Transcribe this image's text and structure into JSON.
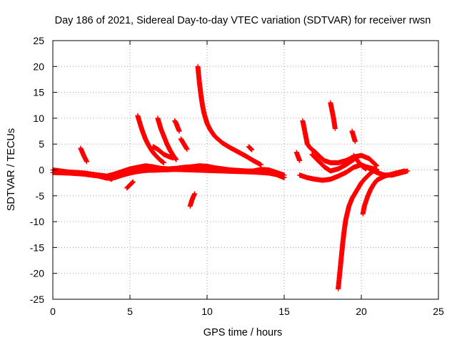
{
  "chart_data": {
    "type": "scatter",
    "title": "Day 186 of 2021, Sidereal Day-to-day VTEC variation (SDTVAR) for receiver rwsn",
    "xlabel": "GPS time / hours",
    "ylabel": "SDTVAR / TECUs",
    "xlim": [
      0,
      25
    ],
    "ylim": [
      -25,
      25
    ],
    "xticks": [
      0,
      5,
      10,
      15,
      20,
      25
    ],
    "yticks": [
      -25,
      -20,
      -15,
      -10,
      -5,
      0,
      5,
      10,
      15,
      20,
      25
    ],
    "xtick_labels": [
      "0",
      "5",
      "10",
      "15",
      "20",
      "25"
    ],
    "ytick_labels": [
      "-25",
      "-20",
      "-15",
      "-10",
      "-5",
      "0",
      "5",
      "10",
      "15",
      "20",
      "25"
    ],
    "grid": true,
    "marker": "+",
    "color": "#ff0000",
    "series": [
      {
        "name": "baseline-1",
        "x": [
          0,
          0.5,
          1,
          1.5,
          2,
          2.5,
          3,
          3.5,
          4,
          4.5,
          5,
          5.5,
          6,
          6.5,
          7,
          7.5,
          8,
          8.5,
          9,
          9.5,
          10,
          10.5,
          11,
          11.5,
          12,
          12.5,
          13,
          13.5,
          14,
          14.5,
          15
        ],
        "y": [
          0,
          -0.2,
          -0.4,
          -0.5,
          -0.6,
          -0.8,
          -1.0,
          -1.2,
          -0.8,
          -0.3,
          0.2,
          0.5,
          0.8,
          0.6,
          0.3,
          0.2,
          0.3,
          0.5,
          0.6,
          0.8,
          0.7,
          0.4,
          0.2,
          0,
          -0.1,
          -0.2,
          -0.2,
          0.1,
          0,
          -0.5,
          -1.0
        ]
      },
      {
        "name": "baseline-2",
        "x": [
          0,
          1,
          2,
          3,
          3.5,
          4,
          4.5,
          5,
          5.5,
          6,
          7,
          8,
          9,
          10,
          11,
          12,
          13,
          14,
          14.5,
          15
        ],
        "y": [
          -0.5,
          -0.6,
          -0.8,
          -1.2,
          -1.6,
          -1.5,
          -1.0,
          -0.6,
          -0.3,
          -0.1,
          0,
          0.1,
          0,
          -0.1,
          -0.2,
          -0.3,
          -0.4,
          -0.6,
          -0.9,
          -1.5
        ]
      },
      {
        "name": "arc-1",
        "x": [
          1.8,
          1.9,
          2.0,
          2.1,
          2.2
        ],
        "y": [
          4.2,
          3.5,
          2.8,
          2.2,
          1.6
        ]
      },
      {
        "name": "arc-2",
        "x": [
          5.5,
          5.6,
          5.7,
          5.8,
          5.9,
          6.0,
          6.2,
          6.4,
          6.6,
          6.8,
          7.0,
          7.2
        ],
        "y": [
          10.5,
          9.5,
          8.5,
          7.6,
          6.8,
          6.0,
          4.8,
          3.8,
          3.0,
          2.4,
          1.8,
          1.4
        ]
      },
      {
        "name": "arc-3",
        "x": [
          6.8,
          6.9,
          7.0,
          7.2,
          7.4,
          7.6,
          7.8,
          8.0
        ],
        "y": [
          10.0,
          9.0,
          8.0,
          6.5,
          5.0,
          3.8,
          2.8,
          2.0
        ]
      },
      {
        "name": "arc-4",
        "x": [
          7.9,
          8.0,
          8.1,
          8.2
        ],
        "y": [
          9.5,
          9.0,
          8.2,
          7.5
        ]
      },
      {
        "name": "arc-5",
        "x": [
          8.3,
          8.4,
          8.5,
          8.6,
          8.7
        ],
        "y": [
          6.0,
          5.5,
          5.0,
          4.5,
          4.0
        ]
      },
      {
        "name": "arc-6",
        "x": [
          6.5,
          6.8,
          7.0,
          7.2,
          7.5,
          7.8
        ],
        "y": [
          4.5,
          4.0,
          3.5,
          3.0,
          2.6,
          2.3
        ]
      },
      {
        "name": "arc-7",
        "x": [
          9.4,
          9.5,
          9.6,
          9.7,
          9.8,
          10.0,
          10.2,
          10.5,
          11.0,
          11.5,
          12.0,
          12.5,
          13.0,
          13.5
        ],
        "y": [
          20.0,
          17.0,
          14.5,
          12.5,
          11.0,
          9.0,
          7.8,
          6.5,
          5.2,
          4.3,
          3.5,
          2.7,
          1.8,
          1.0
        ]
      },
      {
        "name": "arc-8",
        "x": [
          12.7,
          12.8,
          12.9
        ],
        "y": [
          4.5,
          4.2,
          3.9
        ]
      },
      {
        "name": "arc-9",
        "x": [
          4.8,
          5.0,
          5.2
        ],
        "y": [
          -3.5,
          -2.9,
          -2.3
        ]
      },
      {
        "name": "arc-10",
        "x": [
          8.9,
          9.0,
          9.1,
          9.2
        ],
        "y": [
          -7.0,
          -6.0,
          -5.2,
          -4.6
        ]
      },
      {
        "name": "arc-11",
        "x": [
          3.4,
          3.6,
          3.8,
          4.0,
          4.2
        ],
        "y": [
          -1.3,
          -1.5,
          -1.8,
          -1.2,
          -0.6
        ]
      },
      {
        "name": "baseline-3",
        "x": [
          16,
          16.5,
          17,
          17.5,
          18,
          18.5,
          19,
          19.5,
          20,
          20.5,
          21,
          21.5,
          22,
          22.5,
          23
        ],
        "y": [
          -1.0,
          -1.5,
          -1.8,
          -2.0,
          -1.8,
          -1.2,
          -0.5,
          0.5,
          1.0,
          0.3,
          -0.5,
          -1.0,
          -1.0,
          -0.6,
          -0.2
        ]
      },
      {
        "name": "arc-12",
        "x": [
          16.2,
          16.3,
          16.4,
          16.5,
          16.7,
          17.0,
          17.3,
          17.6,
          18.0,
          18.5,
          19.0,
          19.5,
          20.0,
          20.5,
          21.0
        ],
        "y": [
          9.5,
          8.0,
          6.5,
          5.0,
          4.2,
          3.5,
          2.6,
          1.8,
          1.4,
          1.4,
          1.8,
          2.5,
          2.8,
          2.2,
          0.8
        ]
      },
      {
        "name": "arc-13",
        "x": [
          16.8,
          17.0,
          17.2,
          17.4,
          17.6,
          17.8,
          18.0,
          18.5,
          19.0,
          19.5,
          19.7
        ],
        "y": [
          3.0,
          2.4,
          1.8,
          1.2,
          0.6,
          0.2,
          -0.2,
          0.2,
          1.0,
          2.0,
          2.6
        ]
      },
      {
        "name": "arc-14",
        "x": [
          18.0,
          18.1,
          18.2,
          18.3
        ],
        "y": [
          13.0,
          11.5,
          10.0,
          8.0
        ]
      },
      {
        "name": "arc-15",
        "x": [
          19.4,
          19.5,
          19.6
        ],
        "y": [
          7.5,
          6.5,
          5.5
        ]
      },
      {
        "name": "arc-16",
        "x": [
          19.5,
          19.7,
          19.9,
          20.1,
          20.3
        ],
        "y": [
          2.8,
          2.0,
          1.2,
          0.6,
          0.2
        ]
      },
      {
        "name": "arc-17",
        "x": [
          15.8,
          15.9,
          16.0
        ],
        "y": [
          3.4,
          2.6,
          1.8
        ]
      },
      {
        "name": "arc-18",
        "x": [
          18.5,
          18.6,
          18.7,
          18.8,
          18.9,
          19.0,
          19.2,
          19.4,
          19.6,
          19.8,
          20.0,
          20.2,
          20.4,
          20.6,
          20.8,
          21.0
        ],
        "y": [
          -23.0,
          -20.0,
          -17.0,
          -14.0,
          -11.5,
          -9.5,
          -7.0,
          -5.5,
          -4.5,
          -3.5,
          -2.5,
          -1.8,
          -1.2,
          -0.6,
          -0.2,
          0
        ]
      },
      {
        "name": "arc-19",
        "x": [
          20.1,
          20.2,
          20.4,
          20.6,
          20.8,
          21.0,
          21.3,
          21.6,
          22.0,
          22.4,
          22.8
        ],
        "y": [
          -8.5,
          -7.0,
          -5.2,
          -3.8,
          -2.8,
          -2.0,
          -1.5,
          -1.1,
          -0.8,
          -0.5,
          -0.2
        ]
      },
      {
        "name": "arc-20",
        "x": [
          20.3,
          20.7,
          21.0
        ],
        "y": [
          0.6,
          0.3,
          0.1
        ]
      }
    ]
  }
}
